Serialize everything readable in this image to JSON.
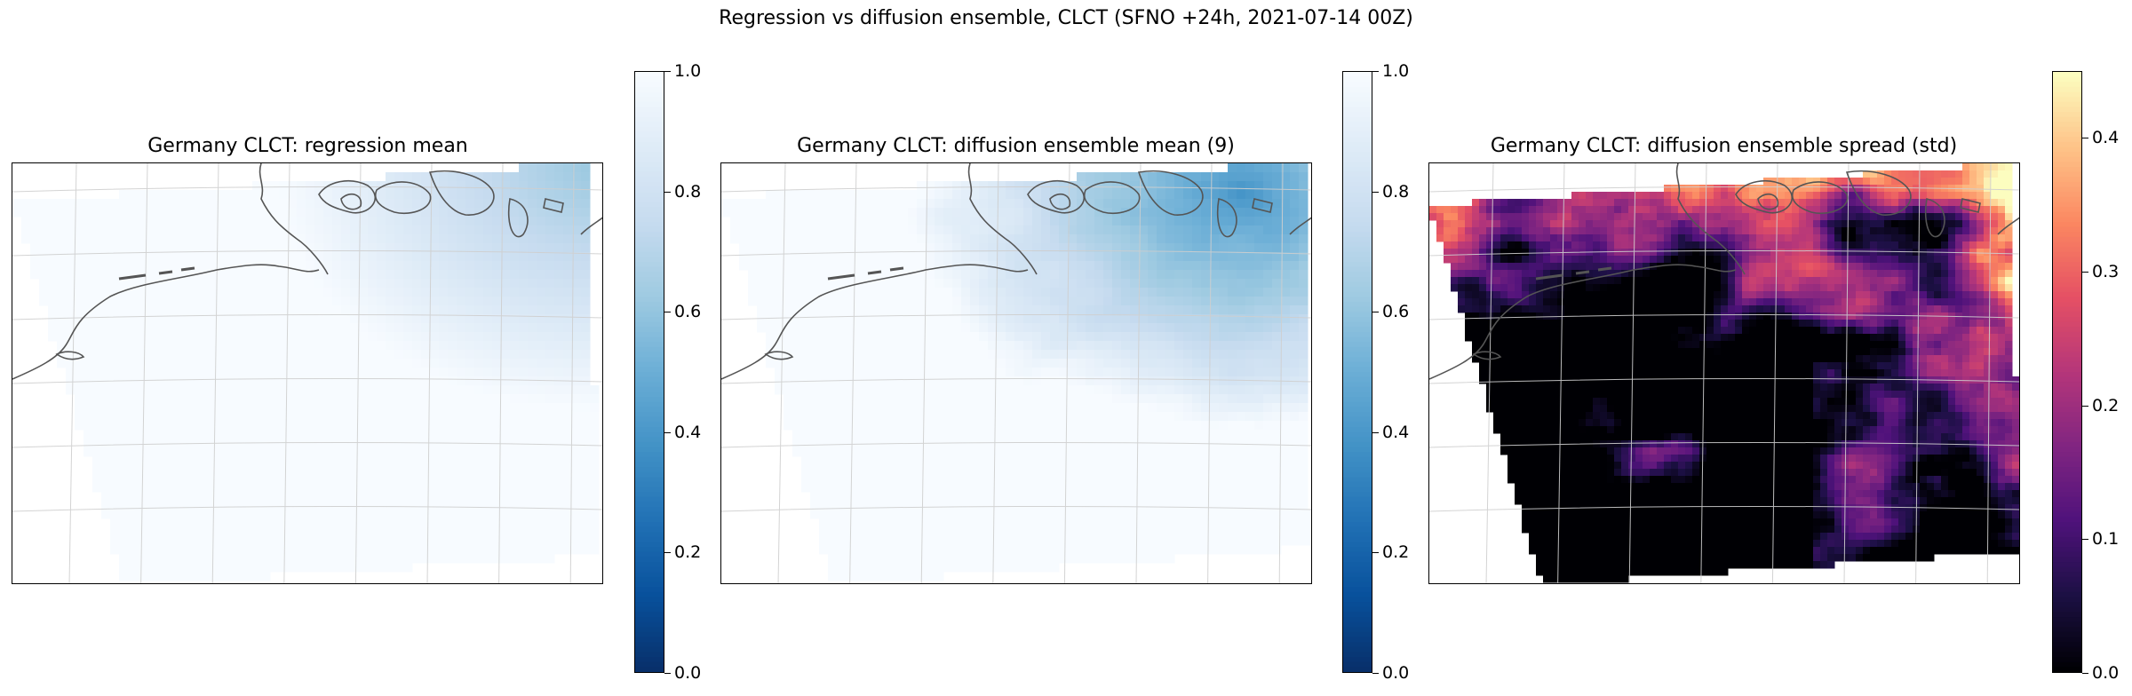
{
  "figure": {
    "suptitle": "Regression vs diffusion ensemble, CLCT  (SFNO +24h, 2021-07-14 00Z)"
  },
  "colors": {
    "blues_low": "#08306b",
    "blues_high": "#f7fbff",
    "magma_low": "#000004",
    "magma_high": "#fcfdbf",
    "coastline": "#555555",
    "gridline": "#cfcfcf"
  },
  "chart_data": [
    {
      "type": "heatmap",
      "title": "Germany CLCT: regression mean",
      "colormap": "Blues_r",
      "colorbar_ticks": [
        "0.0",
        "0.2",
        "0.4",
        "0.6",
        "0.8",
        "1.0"
      ],
      "clim": [
        0.0,
        1.0
      ],
      "field_range_approx": [
        0.55,
        1.0
      ],
      "description_min_region": "north-east corner",
      "grid": true
    },
    {
      "type": "heatmap",
      "title": "Germany CLCT: diffusion ensemble mean (9)",
      "colormap": "Blues_r",
      "colorbar_ticks": [
        "0.0",
        "0.2",
        "0.4",
        "0.6",
        "0.8",
        "1.0"
      ],
      "clim": [
        0.0,
        1.0
      ],
      "field_range_approx": [
        0.35,
        1.0
      ],
      "description_min_region": "north-east corner",
      "grid": true
    },
    {
      "type": "heatmap",
      "title": "Germany CLCT: diffusion ensemble spread (std)",
      "colormap": "magma",
      "colorbar_ticks": [
        "0.0",
        "0.1",
        "0.2",
        "0.3",
        "0.4"
      ],
      "clim": [
        0.0,
        0.45
      ],
      "field_range_approx": [
        0.0,
        0.45
      ],
      "grid": true
    }
  ]
}
